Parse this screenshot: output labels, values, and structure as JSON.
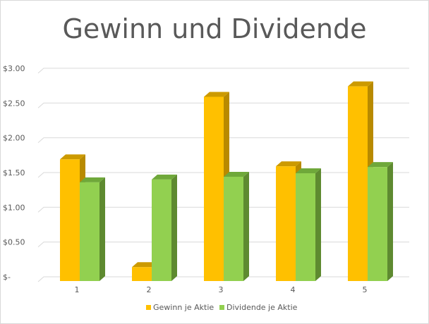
{
  "chart_data": {
    "type": "bar",
    "title": "Gewinn und Dividende",
    "categories": [
      "1",
      "2",
      "3",
      "4",
      "5"
    ],
    "series": [
      {
        "name": "Gewinn je Aktie",
        "values": [
          1.75,
          0.2,
          2.65,
          1.65,
          2.8
        ],
        "color": "#ffc000",
        "side_color": "#b88a00",
        "top_color": "#cc9a00"
      },
      {
        "name": "Dividende je Aktie",
        "values": [
          1.42,
          1.46,
          1.5,
          1.55,
          1.64
        ],
        "color": "#92d050",
        "side_color": "#5e8a30",
        "top_color": "#6fa83a"
      }
    ],
    "y_ticks": [
      "$-",
      "$0.50",
      "$1.00",
      "$1.50",
      "$2.00",
      "$2.50",
      "$3.00"
    ],
    "ylim": [
      0,
      3.0
    ],
    "xlabel": "",
    "ylabel": "",
    "grid": true,
    "legend_position": "bottom",
    "gridline_color": "#d9d9d9",
    "text_color": "#595959"
  }
}
